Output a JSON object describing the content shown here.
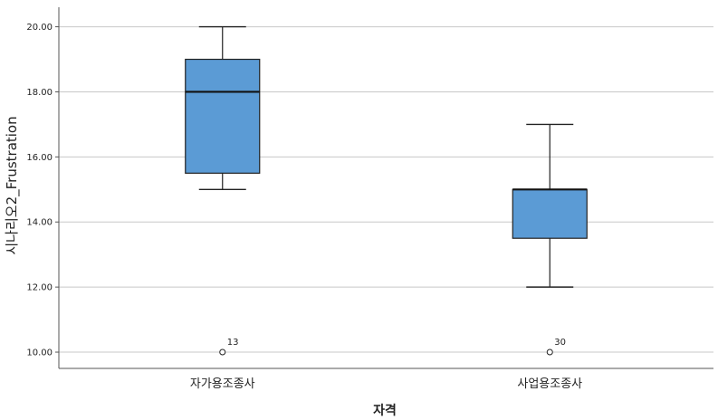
{
  "chart_data": {
    "type": "box",
    "title": "",
    "xlabel": "자격",
    "ylabel": "시나리오2_Frustration",
    "ylim": [
      9.5,
      20.6
    ],
    "yticks": [
      "10.00",
      "12.00",
      "14.00",
      "16.00",
      "18.00",
      "20.00"
    ],
    "ytick_values": [
      10,
      12,
      14,
      16,
      18,
      20
    ],
    "grid": true,
    "box_color": "#5b9bd5",
    "categories": [
      "자가용조종사",
      "사업용조종사"
    ],
    "boxes": [
      {
        "category": "자가용조종사",
        "whisker_low": 15,
        "q1": 15.5,
        "median": 18,
        "q3": 19,
        "whisker_high": 20,
        "outliers": [
          {
            "value": 10,
            "label": "13"
          }
        ]
      },
      {
        "category": "사업용조종사",
        "whisker_low": 12,
        "q1": 13.5,
        "median": 15,
        "q3": 15,
        "whisker_high": 17,
        "outliers": [
          {
            "value": 10,
            "label": "30"
          }
        ]
      }
    ]
  }
}
